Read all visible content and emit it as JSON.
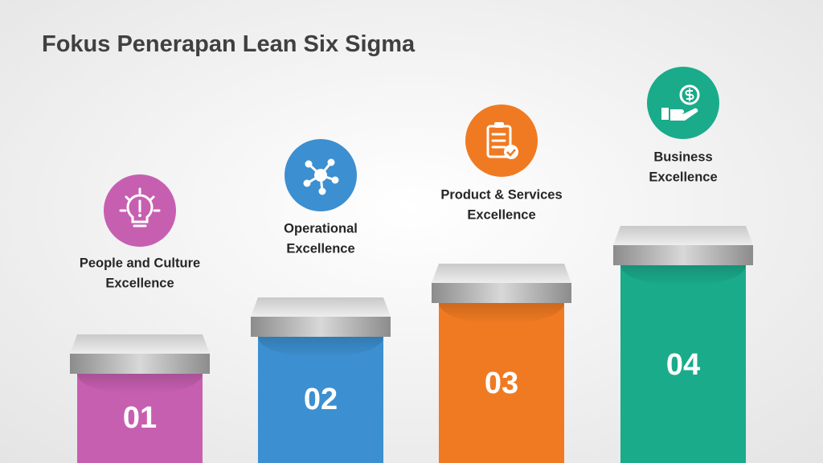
{
  "title": "Fokus Penerapan Lean Six Sigma",
  "steps": [
    {
      "number": "01",
      "label": [
        "People and Culture",
        "Excellence"
      ],
      "color": "#c75fb1"
    },
    {
      "number": "02",
      "label": [
        "Operational",
        "Excellence"
      ],
      "color": "#3c8fd0"
    },
    {
      "number": "03",
      "label": [
        "Product & Services",
        "Excellence"
      ],
      "color": "#f07a22"
    },
    {
      "number": "04",
      "label": [
        "Business",
        "Excellence"
      ],
      "color": "#1aab8b"
    }
  ]
}
